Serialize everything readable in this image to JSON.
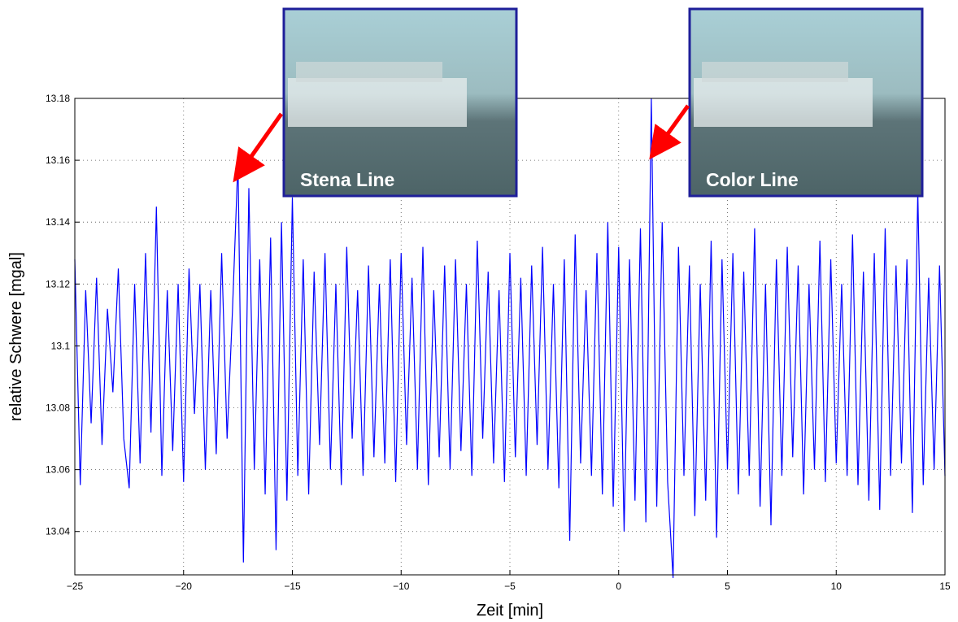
{
  "chart_data": {
    "type": "line",
    "xlabel": "Zeit [min]",
    "ylabel": "relative Schwere [mgal]",
    "color": "#0000ff",
    "grid": true,
    "xlim": [
      -25,
      15
    ],
    "ylim": [
      13.026,
      13.18
    ],
    "xticks": [
      {
        "value": -25,
        "label": "−25"
      },
      {
        "value": -20,
        "label": "−20"
      },
      {
        "value": -15,
        "label": "−15"
      },
      {
        "value": -10,
        "label": "−10"
      },
      {
        "value": -5,
        "label": "−5"
      },
      0,
      5,
      10,
      15
    ],
    "yticks": [
      13.04,
      13.06,
      13.08,
      13.1,
      13.12,
      13.14,
      13.16,
      13.18
    ],
    "annotations": [
      {
        "text": "Stena Line"
      },
      {
        "text": "Color Line"
      }
    ],
    "x": [
      -25,
      -24.75,
      -24.5,
      -24.25,
      -24,
      -23.75,
      -23.5,
      -23.25,
      -23,
      -22.75,
      -22.5,
      -22.25,
      -22,
      -21.75,
      -21.5,
      -21.25,
      -21,
      -20.75,
      -20.5,
      -20.25,
      -20,
      -19.75,
      -19.5,
      -19.25,
      -19,
      -18.75,
      -18.5,
      -18.25,
      -18,
      -17.75,
      -17.5,
      -17.25,
      -17,
      -16.75,
      -16.5,
      -16.25,
      -16,
      -15.75,
      -15.5,
      -15.25,
      -15,
      -14.75,
      -14.5,
      -14.25,
      -14,
      -13.75,
      -13.5,
      -13.25,
      -13,
      -12.75,
      -12.5,
      -12.25,
      -12,
      -11.75,
      -11.5,
      -11.25,
      -11,
      -10.75,
      -10.5,
      -10.25,
      -10,
      -9.75,
      -9.5,
      -9.25,
      -9,
      -8.75,
      -8.5,
      -8.25,
      -8,
      -7.75,
      -7.5,
      -7.25,
      -7,
      -6.75,
      -6.5,
      -6.25,
      -6,
      -5.75,
      -5.5,
      -5.25,
      -5,
      -4.75,
      -4.5,
      -4.25,
      -4,
      -3.75,
      -3.5,
      -3.25,
      -3,
      -2.75,
      -2.5,
      -2.25,
      -2,
      -1.75,
      -1.5,
      -1.25,
      -1,
      -0.75,
      -0.5,
      -0.25,
      0,
      0.25,
      0.5,
      0.75,
      1,
      1.25,
      1.5,
      1.75,
      2,
      2.25,
      2.5,
      2.75,
      3,
      3.25,
      3.5,
      3.75,
      4,
      4.25,
      4.5,
      4.75,
      5,
      5.25,
      5.5,
      5.75,
      6,
      6.25,
      6.5,
      6.75,
      7,
      7.25,
      7.5,
      7.75,
      8,
      8.25,
      8.5,
      8.75,
      9,
      9.25,
      9.5,
      9.75,
      10,
      10.25,
      10.5,
      10.75,
      11,
      11.25,
      11.5,
      11.75,
      12,
      12.25,
      12.5,
      12.75,
      13,
      13.25,
      13.5,
      13.75,
      14,
      14.25,
      14.5,
      14.75,
      15
    ],
    "values": [
      13.128,
      13.055,
      13.118,
      13.075,
      13.122,
      13.068,
      13.112,
      13.085,
      13.125,
      13.07,
      13.054,
      13.12,
      13.062,
      13.13,
      13.072,
      13.145,
      13.058,
      13.118,
      13.066,
      13.12,
      13.056,
      13.125,
      13.078,
      13.12,
      13.06,
      13.118,
      13.065,
      13.13,
      13.07,
      13.112,
      13.16,
      13.03,
      13.151,
      13.06,
      13.128,
      13.052,
      13.135,
      13.034,
      13.14,
      13.05,
      13.148,
      13.058,
      13.128,
      13.052,
      13.124,
      13.068,
      13.13,
      13.06,
      13.12,
      13.055,
      13.132,
      13.07,
      13.118,
      13.058,
      13.126,
      13.064,
      13.12,
      13.062,
      13.128,
      13.056,
      13.13,
      13.068,
      13.122,
      13.06,
      13.132,
      13.055,
      13.118,
      13.064,
      13.126,
      13.06,
      13.128,
      13.066,
      13.12,
      13.058,
      13.134,
      13.07,
      13.124,
      13.062,
      13.118,
      13.056,
      13.13,
      13.064,
      13.122,
      13.058,
      13.126,
      13.068,
      13.132,
      13.06,
      13.12,
      13.054,
      13.128,
      13.037,
      13.136,
      13.062,
      13.118,
      13.058,
      13.13,
      13.052,
      13.14,
      13.048,
      13.132,
      13.04,
      13.128,
      13.05,
      13.138,
      13.043,
      13.18,
      13.048,
      13.14,
      13.056,
      13.025,
      13.132,
      13.058,
      13.126,
      13.045,
      13.12,
      13.05,
      13.134,
      13.038,
      13.128,
      13.06,
      13.13,
      13.052,
      13.124,
      13.058,
      13.138,
      13.048,
      13.12,
      13.042,
      13.128,
      13.058,
      13.132,
      13.064,
      13.126,
      13.052,
      13.12,
      13.06,
      13.134,
      13.056,
      13.128,
      13.062,
      13.12,
      13.058,
      13.136,
      13.055,
      13.124,
      13.05,
      13.13,
      13.047,
      13.138,
      13.058,
      13.126,
      13.062,
      13.128,
      13.046,
      13.15,
      13.055,
      13.122,
      13.06,
      13.126,
      13.058
    ]
  }
}
